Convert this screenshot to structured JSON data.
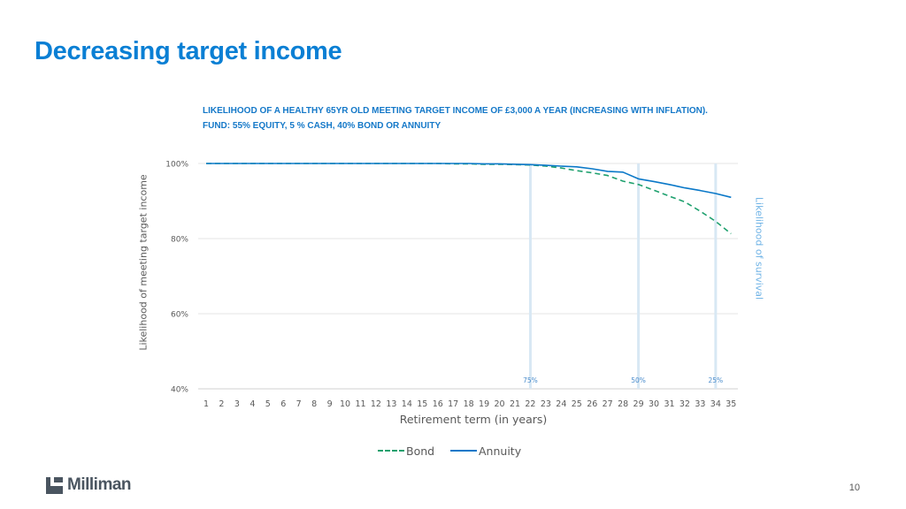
{
  "page": {
    "title": "Decreasing target income",
    "page_number": "10",
    "logo_text": "Milliman"
  },
  "colors": {
    "title": "#0a7fd4",
    "bond": "#1ea06e",
    "annuity": "#0a78c8",
    "markers": "#d8e8f4",
    "y2label": "#6fb3e6"
  },
  "chart_data": {
    "type": "line",
    "title": "LIKELIHOOD OF A HEALTHY 65YR OLD MEETING TARGET INCOME OF £3,000 A YEAR (INCREASING WITH INFLATION). FUND: 55% EQUITY, 5 % CASH, 40% BOND OR ANNUITY",
    "xlabel": "Retirement term (in years)",
    "ylabel": "Likelihood of meeting target income",
    "y2label": "Likelihood of survival",
    "x": [
      1,
      2,
      3,
      4,
      5,
      6,
      7,
      8,
      9,
      10,
      11,
      12,
      13,
      14,
      15,
      16,
      17,
      18,
      19,
      20,
      21,
      22,
      23,
      24,
      25,
      26,
      27,
      28,
      29,
      30,
      31,
      32,
      33,
      34,
      35
    ],
    "ylim": [
      40,
      100
    ],
    "yticks": [
      "40%",
      "60%",
      "80%",
      "100%"
    ],
    "ytick_values": [
      40,
      60,
      80,
      100
    ],
    "grid": true,
    "legend_position": "bottom",
    "series": [
      {
        "name": "Bond",
        "style": "dashed",
        "values": [
          100,
          100,
          100,
          100,
          100,
          100,
          100,
          100,
          100,
          100,
          100,
          100,
          100,
          100,
          100,
          100,
          99.9,
          99.9,
          99.8,
          99.8,
          99.7,
          99.6,
          99.3,
          98.8,
          98.1,
          97.5,
          96.8,
          95.3,
          94.4,
          92.9,
          91.3,
          89.8,
          87.3,
          84.6,
          81.3
        ]
      },
      {
        "name": "Annuity",
        "style": "solid",
        "values": [
          100,
          100,
          100,
          100,
          100,
          100,
          100,
          100,
          100,
          100,
          100,
          100,
          100,
          100,
          100,
          100,
          100,
          100,
          99.9,
          99.9,
          99.8,
          99.7,
          99.5,
          99.3,
          99.1,
          98.6,
          97.9,
          97.7,
          95.9,
          95.2,
          94.4,
          93.5,
          92.8,
          92.0,
          91.0
        ]
      }
    ],
    "survival_markers": [
      {
        "x": 22,
        "label": "75%"
      },
      {
        "x": 29,
        "label": "50%"
      },
      {
        "x": 34,
        "label": "25%"
      }
    ]
  }
}
